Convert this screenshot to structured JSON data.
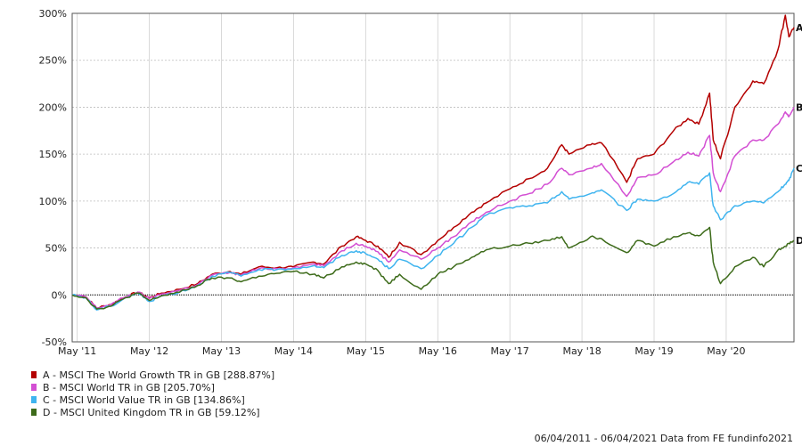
{
  "chart_data": {
    "type": "line",
    "y_tick_labels": [
      "300%",
      "250%",
      "200%",
      "150%",
      "100%",
      "50%",
      "0%",
      "-50%"
    ],
    "y_ticks": [
      300,
      250,
      200,
      150,
      100,
      50,
      0,
      -50
    ],
    "ylim": [
      -50,
      300
    ],
    "x_tick_labels": [
      "May '11",
      "May '12",
      "May '13",
      "May '14",
      "May '15",
      "May '16",
      "May '17",
      "May '18",
      "May '19",
      "May '20"
    ],
    "x_ticks": [
      2011.33,
      2012.33,
      2013.33,
      2014.33,
      2015.33,
      2016.33,
      2017.33,
      2018.33,
      2019.33,
      2020.33
    ],
    "xlim": [
      2011.26,
      2021.27
    ],
    "grid": true,
    "series": [
      {
        "name": "A - MSCI The World Growth TR in GB [288.87%]",
        "marker": "A",
        "color": "#b40000",
        "points": [
          [
            2011.26,
            0
          ],
          [
            2011.45,
            -2
          ],
          [
            2011.6,
            -14
          ],
          [
            2011.8,
            -10
          ],
          [
            2012.0,
            -2
          ],
          [
            2012.17,
            3
          ],
          [
            2012.33,
            -3
          ],
          [
            2012.5,
            2
          ],
          [
            2012.75,
            6
          ],
          [
            2013.0,
            12
          ],
          [
            2013.2,
            22
          ],
          [
            2013.45,
            25
          ],
          [
            2013.6,
            22
          ],
          [
            2013.85,
            30
          ],
          [
            2014.1,
            29
          ],
          [
            2014.33,
            30
          ],
          [
            2014.6,
            35
          ],
          [
            2014.75,
            33
          ],
          [
            2015.0,
            52
          ],
          [
            2015.2,
            62
          ],
          [
            2015.33,
            58
          ],
          [
            2015.5,
            52
          ],
          [
            2015.65,
            40
          ],
          [
            2015.8,
            56
          ],
          [
            2016.1,
            43
          ],
          [
            2016.33,
            58
          ],
          [
            2016.55,
            72
          ],
          [
            2016.8,
            88
          ],
          [
            2017.0,
            98
          ],
          [
            2017.33,
            113
          ],
          [
            2017.6,
            124
          ],
          [
            2017.85,
            135
          ],
          [
            2018.05,
            160
          ],
          [
            2018.15,
            150
          ],
          [
            2018.45,
            160
          ],
          [
            2018.6,
            162
          ],
          [
            2018.95,
            120
          ],
          [
            2019.1,
            145
          ],
          [
            2019.33,
            150
          ],
          [
            2019.6,
            175
          ],
          [
            2019.8,
            188
          ],
          [
            2019.95,
            182
          ],
          [
            2020.1,
            215
          ],
          [
            2020.15,
            165
          ],
          [
            2020.25,
            145
          ],
          [
            2020.45,
            200
          ],
          [
            2020.7,
            228
          ],
          [
            2020.85,
            225
          ],
          [
            2021.05,
            262
          ],
          [
            2021.15,
            298
          ],
          [
            2021.2,
            275
          ],
          [
            2021.27,
            285
          ]
        ]
      },
      {
        "name": "B - MSCI World TR in GB [205.70%]",
        "marker": "B",
        "color": "#d34fd3",
        "points": [
          [
            2011.26,
            0
          ],
          [
            2011.45,
            -2
          ],
          [
            2011.6,
            -14
          ],
          [
            2011.8,
            -10
          ],
          [
            2012.0,
            -2
          ],
          [
            2012.17,
            3
          ],
          [
            2012.33,
            -4
          ],
          [
            2012.5,
            1
          ],
          [
            2012.75,
            5
          ],
          [
            2013.0,
            11
          ],
          [
            2013.2,
            21
          ],
          [
            2013.45,
            24
          ],
          [
            2013.6,
            21
          ],
          [
            2013.85,
            28
          ],
          [
            2014.1,
            28
          ],
          [
            2014.33,
            29
          ],
          [
            2014.6,
            33
          ],
          [
            2014.75,
            31
          ],
          [
            2015.0,
            47
          ],
          [
            2015.2,
            55
          ],
          [
            2015.33,
            52
          ],
          [
            2015.5,
            46
          ],
          [
            2015.65,
            35
          ],
          [
            2015.8,
            48
          ],
          [
            2016.1,
            38
          ],
          [
            2016.33,
            50
          ],
          [
            2016.55,
            62
          ],
          [
            2016.8,
            78
          ],
          [
            2017.0,
            88
          ],
          [
            2017.33,
            100
          ],
          [
            2017.6,
            108
          ],
          [
            2017.85,
            118
          ],
          [
            2018.05,
            135
          ],
          [
            2018.15,
            128
          ],
          [
            2018.45,
            135
          ],
          [
            2018.6,
            140
          ],
          [
            2018.95,
            105
          ],
          [
            2019.1,
            125
          ],
          [
            2019.33,
            128
          ],
          [
            2019.6,
            142
          ],
          [
            2019.8,
            152
          ],
          [
            2019.95,
            148
          ],
          [
            2020.1,
            170
          ],
          [
            2020.15,
            130
          ],
          [
            2020.25,
            110
          ],
          [
            2020.45,
            148
          ],
          [
            2020.7,
            165
          ],
          [
            2020.85,
            165
          ],
          [
            2021.05,
            182
          ],
          [
            2021.15,
            195
          ],
          [
            2021.2,
            190
          ],
          [
            2021.27,
            200
          ]
        ]
      },
      {
        "name": "C - MSCI World Value TR in GB [134.86%]",
        "marker": "C",
        "color": "#3fb4ef",
        "points": [
          [
            2011.26,
            0
          ],
          [
            2011.45,
            -3
          ],
          [
            2011.6,
            -16
          ],
          [
            2011.8,
            -12
          ],
          [
            2012.0,
            -3
          ],
          [
            2012.17,
            2
          ],
          [
            2012.33,
            -7
          ],
          [
            2012.5,
            -1
          ],
          [
            2012.75,
            3
          ],
          [
            2013.0,
            10
          ],
          [
            2013.2,
            20
          ],
          [
            2013.45,
            24
          ],
          [
            2013.6,
            20
          ],
          [
            2013.85,
            27
          ],
          [
            2014.1,
            27
          ],
          [
            2014.33,
            28
          ],
          [
            2014.6,
            31
          ],
          [
            2014.75,
            29
          ],
          [
            2015.0,
            42
          ],
          [
            2015.2,
            47
          ],
          [
            2015.33,
            44
          ],
          [
            2015.5,
            38
          ],
          [
            2015.65,
            28
          ],
          [
            2015.8,
            38
          ],
          [
            2016.1,
            28
          ],
          [
            2016.33,
            42
          ],
          [
            2016.55,
            55
          ],
          [
            2016.8,
            72
          ],
          [
            2017.0,
            85
          ],
          [
            2017.33,
            93
          ],
          [
            2017.6,
            95
          ],
          [
            2017.85,
            98
          ],
          [
            2018.05,
            110
          ],
          [
            2018.15,
            102
          ],
          [
            2018.45,
            108
          ],
          [
            2018.6,
            112
          ],
          [
            2018.95,
            90
          ],
          [
            2019.1,
            102
          ],
          [
            2019.33,
            100
          ],
          [
            2019.6,
            108
          ],
          [
            2019.8,
            120
          ],
          [
            2019.95,
            118
          ],
          [
            2020.1,
            130
          ],
          [
            2020.15,
            95
          ],
          [
            2020.25,
            80
          ],
          [
            2020.45,
            95
          ],
          [
            2020.7,
            100
          ],
          [
            2020.85,
            98
          ],
          [
            2021.05,
            110
          ],
          [
            2021.15,
            118
          ],
          [
            2021.2,
            122
          ],
          [
            2021.27,
            135
          ]
        ]
      },
      {
        "name": "D - MSCI United Kingdom TR in GB [59.12%]",
        "marker": "D",
        "color": "#3d6b1a",
        "points": [
          [
            2011.26,
            0
          ],
          [
            2011.45,
            -3
          ],
          [
            2011.6,
            -15
          ],
          [
            2011.8,
            -12
          ],
          [
            2012.0,
            -3
          ],
          [
            2012.17,
            2
          ],
          [
            2012.33,
            -6
          ],
          [
            2012.5,
            -1
          ],
          [
            2012.75,
            3
          ],
          [
            2013.0,
            10
          ],
          [
            2013.2,
            18
          ],
          [
            2013.45,
            18
          ],
          [
            2013.6,
            14
          ],
          [
            2013.85,
            20
          ],
          [
            2014.1,
            23
          ],
          [
            2014.33,
            25
          ],
          [
            2014.6,
            22
          ],
          [
            2014.75,
            18
          ],
          [
            2015.0,
            30
          ],
          [
            2015.2,
            35
          ],
          [
            2015.33,
            33
          ],
          [
            2015.5,
            26
          ],
          [
            2015.65,
            12
          ],
          [
            2015.8,
            22
          ],
          [
            2016.1,
            6
          ],
          [
            2016.33,
            22
          ],
          [
            2016.55,
            30
          ],
          [
            2016.8,
            40
          ],
          [
            2017.0,
            48
          ],
          [
            2017.33,
            52
          ],
          [
            2017.6,
            55
          ],
          [
            2017.85,
            58
          ],
          [
            2018.05,
            62
          ],
          [
            2018.15,
            50
          ],
          [
            2018.45,
            62
          ],
          [
            2018.6,
            60
          ],
          [
            2018.95,
            45
          ],
          [
            2019.1,
            58
          ],
          [
            2019.33,
            52
          ],
          [
            2019.6,
            62
          ],
          [
            2019.8,
            66
          ],
          [
            2019.95,
            63
          ],
          [
            2020.1,
            72
          ],
          [
            2020.15,
            35
          ],
          [
            2020.25,
            12
          ],
          [
            2020.45,
            30
          ],
          [
            2020.7,
            40
          ],
          [
            2020.85,
            30
          ],
          [
            2021.05,
            48
          ],
          [
            2021.15,
            52
          ],
          [
            2021.2,
            55
          ],
          [
            2021.27,
            58
          ]
        ]
      }
    ]
  },
  "footer": "06/04/2011 - 06/04/2021 Data from FE fundinfo2021"
}
